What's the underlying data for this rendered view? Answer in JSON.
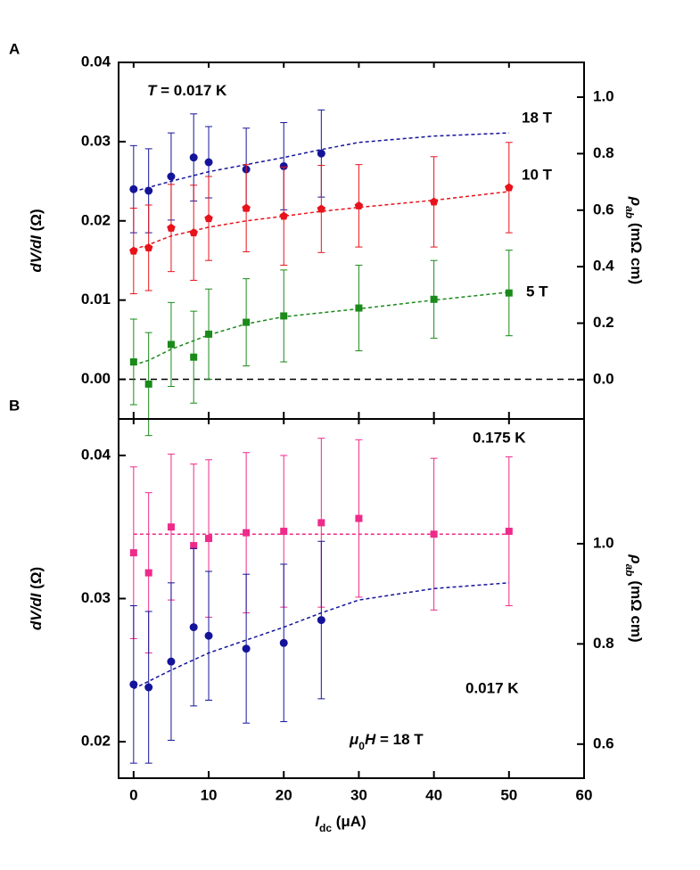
{
  "chart_data": [
    {
      "type": "scatter",
      "panel_label": "A",
      "annotation": [
        "T",
        " = 0.017 K"
      ],
      "y_label": [
        "dV/dI",
        " (Ω)"
      ],
      "y2_label": [
        "ρ",
        "ab",
        " (mΩ cm)"
      ],
      "xlim": [
        -2,
        60
      ],
      "ylim": [
        -0.005,
        0.04
      ],
      "yticks": [
        {
          "value": 0,
          "label": "0.00"
        },
        0.01,
        0.02,
        0.03,
        0.04
      ],
      "y2lim": [
        -0.139,
        1.123
      ],
      "y2ticks": [
        {
          "value": 0,
          "label": "0.0"
        },
        0.2,
        0.4,
        0.6,
        0.8,
        {
          "value": 1,
          "label": "1.0"
        }
      ],
      "zero_line": true,
      "series": [
        {
          "name": "18 T",
          "color": "#14149a",
          "marker": "circle",
          "x": [
            0,
            2,
            5,
            8,
            10,
            15,
            20,
            25
          ],
          "values": [
            0.024,
            0.0238,
            0.0256,
            0.028,
            0.0274,
            0.0265,
            0.0269,
            0.0285
          ],
          "errors": [
            0.0055,
            0.0053,
            0.0055,
            0.0055,
            0.0045,
            0.0052,
            0.0055,
            0.0055
          ],
          "fit": {
            "x": [
              0,
              5,
              10,
              15,
              20,
              25,
              30,
              40,
              50
            ],
            "values": [
              0.0237,
              0.025,
              0.0262,
              0.0271,
              0.028,
              0.029,
              0.0299,
              0.0307,
              0.0311
            ]
          }
        },
        {
          "name": "10 T",
          "color": "#e8121b",
          "marker": "pentagon",
          "x": [
            0,
            2,
            5,
            8,
            10,
            15,
            20,
            25,
            30,
            40,
            50
          ],
          "values": [
            0.0162,
            0.0166,
            0.0191,
            0.0185,
            0.0203,
            0.0216,
            0.0206,
            0.0215,
            0.0219,
            0.0224,
            0.0242
          ],
          "errors": [
            0.0054,
            0.0054,
            0.0055,
            0.006,
            0.0053,
            0.0055,
            0.0062,
            0.0055,
            0.0052,
            0.0057,
            0.0057
          ],
          "fit": {
            "x": [
              0,
              2,
              5,
              10,
              15,
              20,
              25,
              30,
              40,
              50
            ],
            "values": [
              0.0164,
              0.017,
              0.0181,
              0.0192,
              0.02,
              0.0206,
              0.0212,
              0.0217,
              0.0226,
              0.0237
            ]
          }
        },
        {
          "name": "5 T",
          "color": "#1a8a1a",
          "marker": "square",
          "x": [
            0,
            2,
            5,
            8,
            10,
            15,
            20,
            30,
            40,
            50
          ],
          "values": [
            0.0022,
            -0.0006,
            0.0044,
            0.0028,
            0.0057,
            0.0072,
            0.008,
            0.009,
            0.0101,
            0.0109
          ],
          "errors": [
            0.0054,
            0.0065,
            0.0053,
            0.0058,
            0.0057,
            0.0055,
            0.0058,
            0.0054,
            0.0049,
            0.0054
          ],
          "fit": {
            "x": [
              0,
              2,
              5,
              10,
              15,
              20,
              25,
              30,
              40,
              50
            ],
            "values": [
              0.0018,
              0.0024,
              0.0038,
              0.0056,
              0.007,
              0.0079,
              0.0084,
              0.0089,
              0.01,
              0.011
            ]
          }
        }
      ]
    },
    {
      "type": "scatter",
      "panel_label": "B",
      "annotation": [
        "μ",
        "0",
        "H",
        " = 18 T"
      ],
      "x_label": [
        "I",
        "dc",
        " (μA)"
      ],
      "y_label": [
        "dV/dI",
        " (Ω)"
      ],
      "y2_label": [
        "ρ",
        "ab",
        " (mΩ cm)"
      ],
      "xlim": [
        -2,
        60
      ],
      "xticks": [
        0,
        10,
        20,
        30,
        40,
        50,
        60
      ],
      "ylim": [
        0.01745,
        0.04255
      ],
      "yticks": [
        0.02,
        0.03,
        0.04
      ],
      "y2lim": [
        0.532,
        1.249
      ],
      "y2ticks": [
        0.6,
        0.8,
        {
          "value": 1,
          "label": "1.0"
        }
      ],
      "series": [
        {
          "name": "0.175 K",
          "color": "#ee2a8a",
          "marker": "square",
          "x": [
            0,
            2,
            5,
            8,
            10,
            15,
            20,
            25,
            30,
            40,
            50
          ],
          "values": [
            0.0332,
            0.0318,
            0.035,
            0.0337,
            0.0342,
            0.0346,
            0.0347,
            0.0353,
            0.0356,
            0.0345,
            0.0347
          ],
          "errors": [
            0.006,
            0.0056,
            0.0051,
            0.0057,
            0.0055,
            0.0056,
            0.0053,
            0.0059,
            0.0055,
            0.0053,
            0.0052
          ],
          "fit": {
            "x": [
              0,
              50
            ],
            "values": [
              0.0345,
              0.0345
            ]
          }
        },
        {
          "name": "0.017 K",
          "color": "#14149a",
          "marker": "circle",
          "x": [
            0,
            2,
            5,
            8,
            10,
            15,
            20,
            25
          ],
          "values": [
            0.024,
            0.0238,
            0.0256,
            0.028,
            0.0274,
            0.0265,
            0.0269,
            0.0285
          ],
          "errors": [
            0.0055,
            0.0053,
            0.0055,
            0.0055,
            0.0045,
            0.0052,
            0.0055,
            0.0055
          ],
          "fit": {
            "x": [
              0,
              5,
              10,
              15,
              20,
              25,
              30,
              40,
              50
            ],
            "values": [
              0.0237,
              0.025,
              0.0262,
              0.0271,
              0.028,
              0.029,
              0.0299,
              0.0307,
              0.0311
            ]
          }
        }
      ]
    }
  ]
}
